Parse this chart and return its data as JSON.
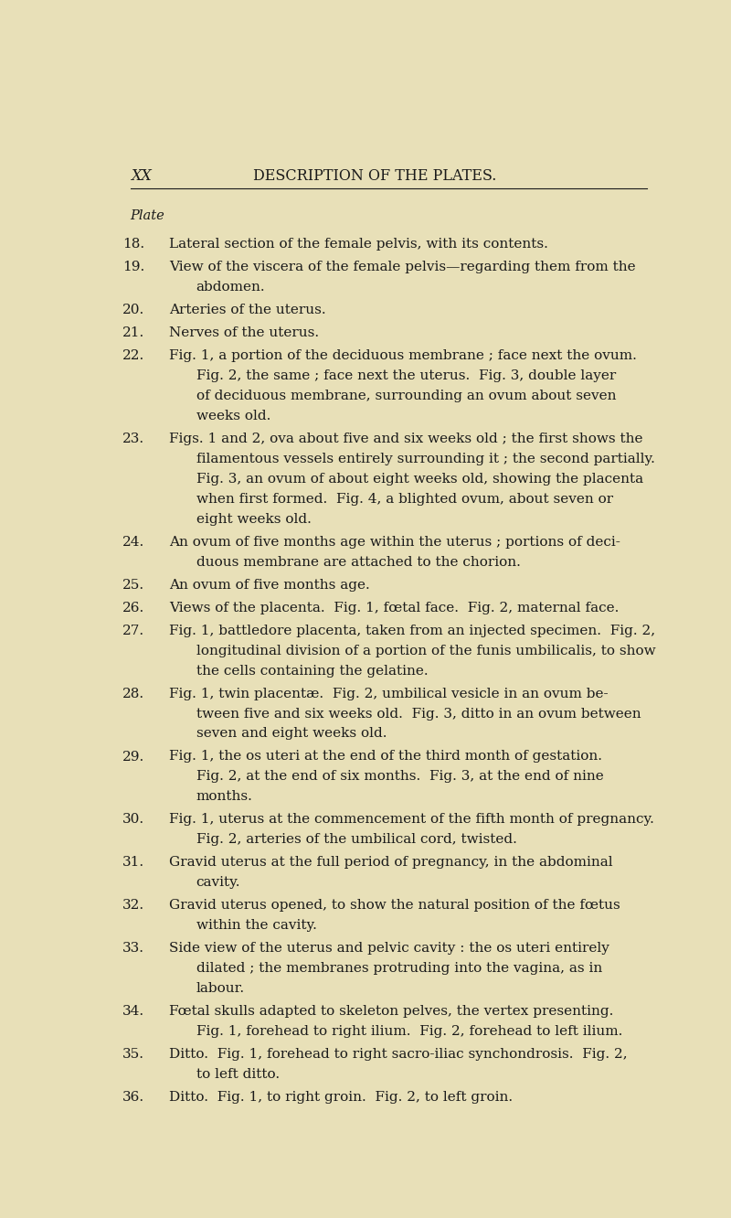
{
  "bg_color": "#e8e0b8",
  "text_color": "#1a1a1a",
  "header_left": "XX",
  "header_center": "DESCRIPTION OF THE PLATES.",
  "plate_label": "Plate",
  "entries": [
    {
      "num": "18.",
      "text": "Lateral section of the female pelvis, with its contents.",
      "indent_lines": []
    },
    {
      "num": "19.",
      "text": "View of the viscera of the female pelvis—regarding them from the",
      "indent_lines": [
        "abdomen."
      ]
    },
    {
      "num": "20.",
      "text": "Arteries of the uterus.",
      "indent_lines": []
    },
    {
      "num": "21.",
      "text": "Nerves of the uterus.",
      "indent_lines": []
    },
    {
      "num": "22.",
      "text": "Fig. 1, a portion of the deciduous membrane ; face next the ovum.",
      "indent_lines": [
        "Fig. 2, the same ; face next the uterus.  Fig. 3, double layer",
        "of deciduous membrane, surrounding an ovum about seven",
        "weeks old."
      ]
    },
    {
      "num": "23.",
      "text": "Figs. 1 and 2, ova about five and six weeks old ; the first shows the",
      "indent_lines": [
        "filamentous vessels entirely surrounding it ; the second partially.",
        "Fig. 3, an ovum of about eight weeks old, showing the placenta",
        "when first formed.  Fig. 4, a blighted ovum, about seven or",
        "eight weeks old."
      ]
    },
    {
      "num": "24.",
      "text": "An ovum of five months age within the uterus ; portions of deci-",
      "indent_lines": [
        "duous membrane are attached to the chorion."
      ]
    },
    {
      "num": "25.",
      "text": "An ovum of five months age.",
      "indent_lines": []
    },
    {
      "num": "26.",
      "text": "Views of the placenta.  Fig. 1, fœtal face.  Fig. 2, maternal face.",
      "indent_lines": []
    },
    {
      "num": "27.",
      "text": "Fig. 1, battledore placenta, taken from an injected specimen.  Fig. 2,",
      "indent_lines": [
        "longitudinal division of a portion of the funis umbilicalis, to show",
        "the cells containing the gelatine."
      ]
    },
    {
      "num": "28.",
      "text": "Fig. 1, twin placentæ.  Fig. 2, umbilical vesicle in an ovum be-",
      "indent_lines": [
        "tween five and six weeks old.  Fig. 3, ditto in an ovum between",
        "seven and eight weeks old."
      ]
    },
    {
      "num": "29.",
      "text": "Fig. 1, the os uteri at the end of the third month of gestation.",
      "indent_lines": [
        "Fig. 2, at the end of six months.  Fig. 3, at the end of nine",
        "months."
      ]
    },
    {
      "num": "30.",
      "text": "Fig. 1, uterus at the commencement of the fifth month of pregnancy.",
      "indent_lines": [
        "Fig. 2, arteries of the umbilical cord, twisted."
      ]
    },
    {
      "num": "31.",
      "text": "Gravid uterus at the full period of pregnancy, in the abdominal",
      "indent_lines": [
        "cavity."
      ]
    },
    {
      "num": "32.",
      "text": "Gravid uterus opened, to show the natural position of the fœtus",
      "indent_lines": [
        "within the cavity."
      ]
    },
    {
      "num": "33.",
      "text": "Side view of the uterus and pelvic cavity : the os uteri entirely",
      "indent_lines": [
        "dilated ; the membranes protruding into the vagina, as in",
        "labour."
      ]
    },
    {
      "num": "34.",
      "text": "Fœtal skulls adapted to skeleton pelves, the vertex presenting.",
      "indent_lines": [
        "Fig. 1, forehead to right ilium.  Fig. 2, forehead to left ilium."
      ]
    },
    {
      "num": "35.",
      "text": "Ditto.  Fig. 1, forehead to right sacro-iliac synchondrosis.  Fig. 2,",
      "indent_lines": [
        "to left ditto."
      ]
    },
    {
      "num": "36.",
      "text": "Ditto.  Fig. 1, to right groin.  Fig. 2, to left groin.",
      "indent_lines": []
    }
  ]
}
